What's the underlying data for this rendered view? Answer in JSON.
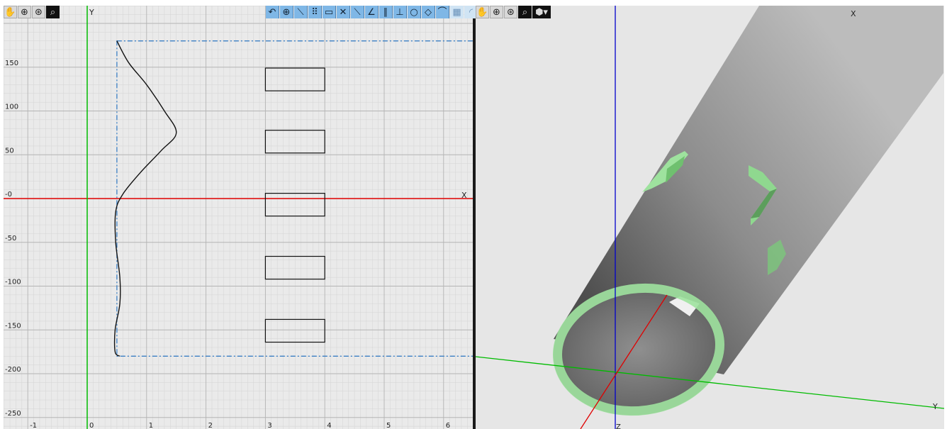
{
  "left_view": {
    "toolbar": [
      {
        "name": "pan-hand-icon",
        "glyph": "✋",
        "style": "plain"
      },
      {
        "name": "zoom-in-icon",
        "glyph": "⊕",
        "style": "plain"
      },
      {
        "name": "zoom-fit-icon",
        "glyph": "⊛",
        "style": "plain"
      },
      {
        "name": "zoom-window-icon",
        "glyph": "⌕",
        "style": "dark"
      }
    ],
    "axis_label_x": "X",
    "axis_label_y": "Y",
    "x_ticks": [
      "-1",
      "0",
      "1",
      "2",
      "3",
      "4",
      "5",
      "6"
    ],
    "y_ticks": [
      "150",
      "100",
      "50",
      "-0",
      "-50",
      "-100",
      "-150",
      "-200",
      "-250"
    ],
    "profile_curve": [
      [
        0.5,
        180
      ],
      [
        0.7,
        155
      ],
      [
        1.0,
        130
      ],
      [
        1.3,
        100
      ],
      [
        1.5,
        75
      ],
      [
        1.25,
        55
      ],
      [
        0.9,
        30
      ],
      [
        0.6,
        5
      ],
      [
        0.48,
        -15
      ],
      [
        0.48,
        -50
      ],
      [
        0.55,
        -90
      ],
      [
        0.55,
        -120
      ],
      [
        0.47,
        -150
      ],
      [
        0.47,
        -175
      ],
      [
        0.55,
        -180
      ]
    ],
    "boundary": {
      "x_min": 0.5,
      "x_max": 6.6,
      "y_min": -180,
      "y_max": 180
    },
    "slots": [
      {
        "x": 3.0,
        "y": 123,
        "w": 1.0,
        "h": 26
      },
      {
        "x": 3.0,
        "y": 52,
        "w": 1.0,
        "h": 26
      },
      {
        "x": 3.0,
        "y": -20,
        "w": 1.0,
        "h": 26
      },
      {
        "x": 3.0,
        "y": -92,
        "w": 1.0,
        "h": 26
      },
      {
        "x": 3.0,
        "y": -164,
        "w": 1.0,
        "h": 26
      }
    ]
  },
  "sketch_toolbar": [
    {
      "name": "arc-tool-icon",
      "glyph": "↶",
      "style": "blue"
    },
    {
      "name": "point-tool-icon",
      "glyph": "⊕",
      "style": "blue"
    },
    {
      "name": "line-tool-icon",
      "glyph": "⟍",
      "style": "blue"
    },
    {
      "name": "array-tool-icon",
      "glyph": "⠿",
      "style": "blue"
    },
    {
      "name": "rectangle-tool-icon",
      "glyph": "▭",
      "style": "blue"
    },
    {
      "name": "trim-tool-icon",
      "glyph": "✕",
      "style": "blue"
    },
    {
      "name": "extend-tool-icon",
      "glyph": "⟍",
      "style": "blue"
    },
    {
      "name": "angle-tool-icon",
      "glyph": "∠",
      "style": "blue"
    },
    {
      "name": "parallel-tool-icon",
      "glyph": "∥",
      "style": "blue"
    },
    {
      "name": "perpendicular-tool-icon",
      "glyph": "⊥",
      "style": "blue"
    },
    {
      "name": "circle-tool-icon",
      "glyph": "○",
      "style": "blue"
    },
    {
      "name": "tangent-tool-icon",
      "glyph": "◇",
      "style": "blue"
    },
    {
      "name": "fillet-tool-icon",
      "glyph": "⌒",
      "style": "blue"
    },
    {
      "name": "grid-toggle-icon",
      "glyph": "▦",
      "style": "light"
    },
    {
      "name": "snap-toggle-icon",
      "glyph": "◜",
      "style": "light"
    }
  ],
  "right_view": {
    "toolbar": [
      {
        "name": "pan-hand-icon",
        "glyph": "✋",
        "style": "plain"
      },
      {
        "name": "zoom-in-icon",
        "glyph": "⊕",
        "style": "plain"
      },
      {
        "name": "zoom-fit-icon",
        "glyph": "⊛",
        "style": "plain"
      },
      {
        "name": "zoom-window-icon",
        "glyph": "⌕",
        "style": "dark"
      },
      {
        "name": "view-cube-icon",
        "glyph": "⬢▾",
        "style": "dark"
      }
    ],
    "axis_label_x": "X",
    "axis_label_y": "Y",
    "axis_label_z": "Z"
  },
  "colors": {
    "x_axis": "#e00000",
    "y_axis": "#00bb00",
    "z_axis": "#0000cc",
    "boundary": "#3b7fc4",
    "tube_green": "#9ee29e"
  }
}
